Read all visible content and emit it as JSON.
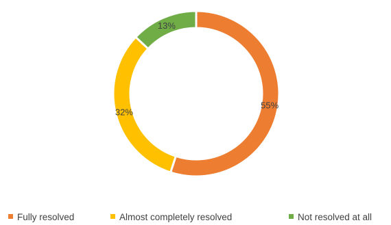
{
  "chart_data": {
    "type": "pie",
    "variant": "doughnut",
    "categories": [
      "Fully resolved",
      "Almost completely resolved",
      "Not resolved at all"
    ],
    "values": [
      55,
      32,
      13
    ],
    "value_labels": [
      "55%",
      "32%",
      "13%"
    ],
    "colors": [
      "#ED7D31",
      "#FFC000",
      "#70AD47"
    ],
    "legend_position": "bottom"
  }
}
